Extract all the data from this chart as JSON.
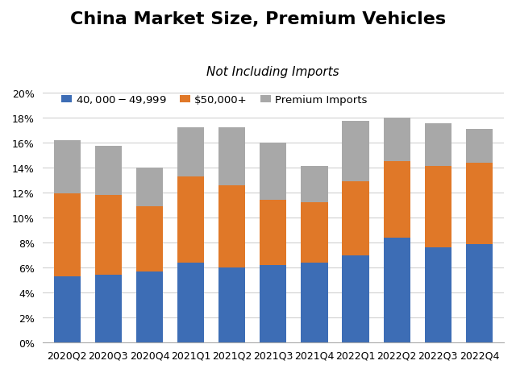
{
  "categories": [
    "2020Q2",
    "2020Q3",
    "2020Q4",
    "2021Q1",
    "2021Q2",
    "2021Q3",
    "2021Q4",
    "2022Q1",
    "2022Q2",
    "2022Q3",
    "2022Q4"
  ],
  "blue": [
    5.3,
    5.4,
    5.7,
    6.4,
    6.0,
    6.2,
    6.4,
    7.0,
    8.4,
    7.6,
    7.9
  ],
  "orange": [
    6.6,
    6.4,
    5.2,
    6.9,
    6.6,
    5.2,
    4.8,
    5.9,
    6.1,
    6.5,
    6.5
  ],
  "gray": [
    4.3,
    3.9,
    3.1,
    3.9,
    4.6,
    4.6,
    2.9,
    4.8,
    3.5,
    3.4,
    2.7
  ],
  "blue_color": "#3D6DB5",
  "orange_color": "#E07828",
  "gray_color": "#A8A8A8",
  "title": "China Market Size, Premium Vehicles",
  "subtitle": "Not Including Imports",
  "legend_labels": [
    "$40,000-$49,999",
    "$50,000+",
    "Premium Imports"
  ],
  "ylim": [
    0,
    21
  ],
  "yticks": [
    0,
    2,
    4,
    6,
    8,
    10,
    12,
    14,
    16,
    18,
    20
  ],
  "background_color": "#FFFFFF",
  "plot_bg_color": "#FFFFFF",
  "title_fontsize": 16,
  "subtitle_fontsize": 11,
  "tick_fontsize": 9,
  "legend_fontsize": 9.5,
  "bar_width": 0.65
}
